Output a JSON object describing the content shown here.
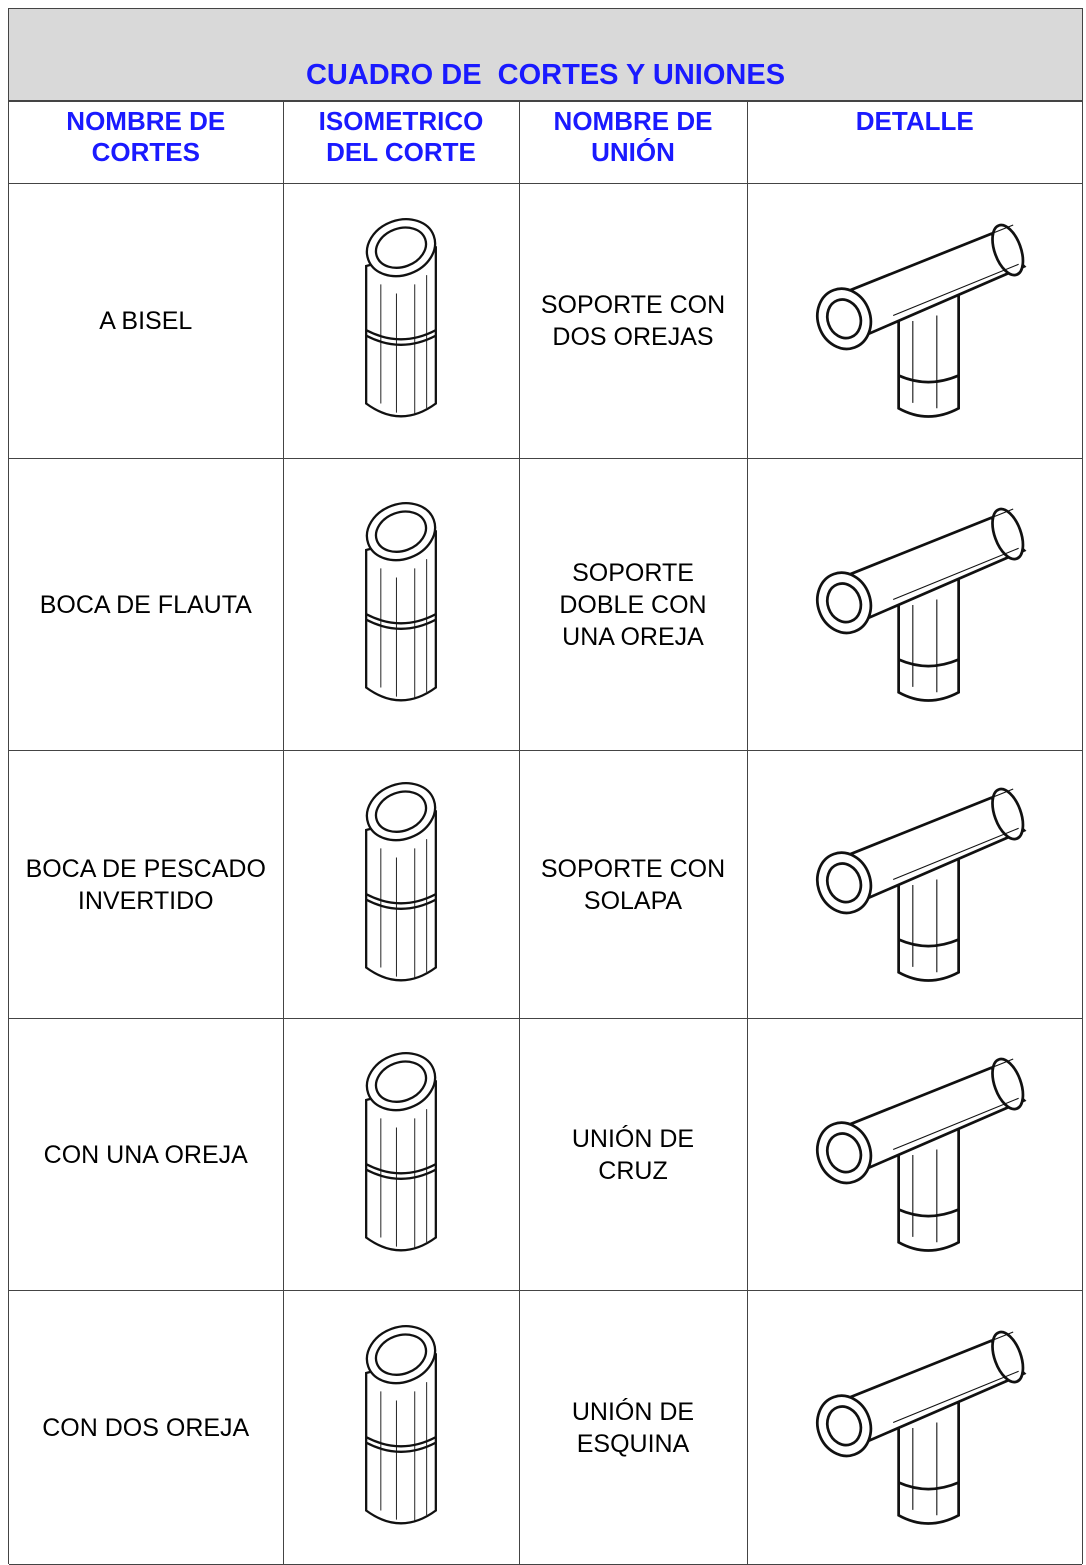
{
  "title": "CUADRO DE  CORTES Y UNIONES",
  "table": {
    "headers": [
      [
        "NOMBRE DE",
        "CORTES"
      ],
      [
        "ISOMETRICO",
        "DEL CORTE"
      ],
      [
        "NOMBRE DE",
        "UNIÓN"
      ],
      [
        "DETALLE"
      ]
    ],
    "rows": [
      {
        "cut": "A BISEL",
        "union": [
          "SOPORTE CON",
          "DOS OREJAS"
        ]
      },
      {
        "cut": "BOCA DE FLAUTA",
        "union": [
          "SOPORTE",
          "DOBLE CON",
          "UNA OREJA"
        ]
      },
      {
        "cut": "BOCA DE PESCADO INVERTIDO",
        "union": [
          "SOPORTE CON",
          "SOLAPA"
        ]
      },
      {
        "cut": "CON UNA OREJA",
        "union": [
          "UNIÓN DE",
          "CRUZ"
        ]
      },
      {
        "cut": "CON DOS  OREJA",
        "union": [
          "UNIÓN DE",
          "ESQUINA"
        ]
      }
    ]
  }
}
